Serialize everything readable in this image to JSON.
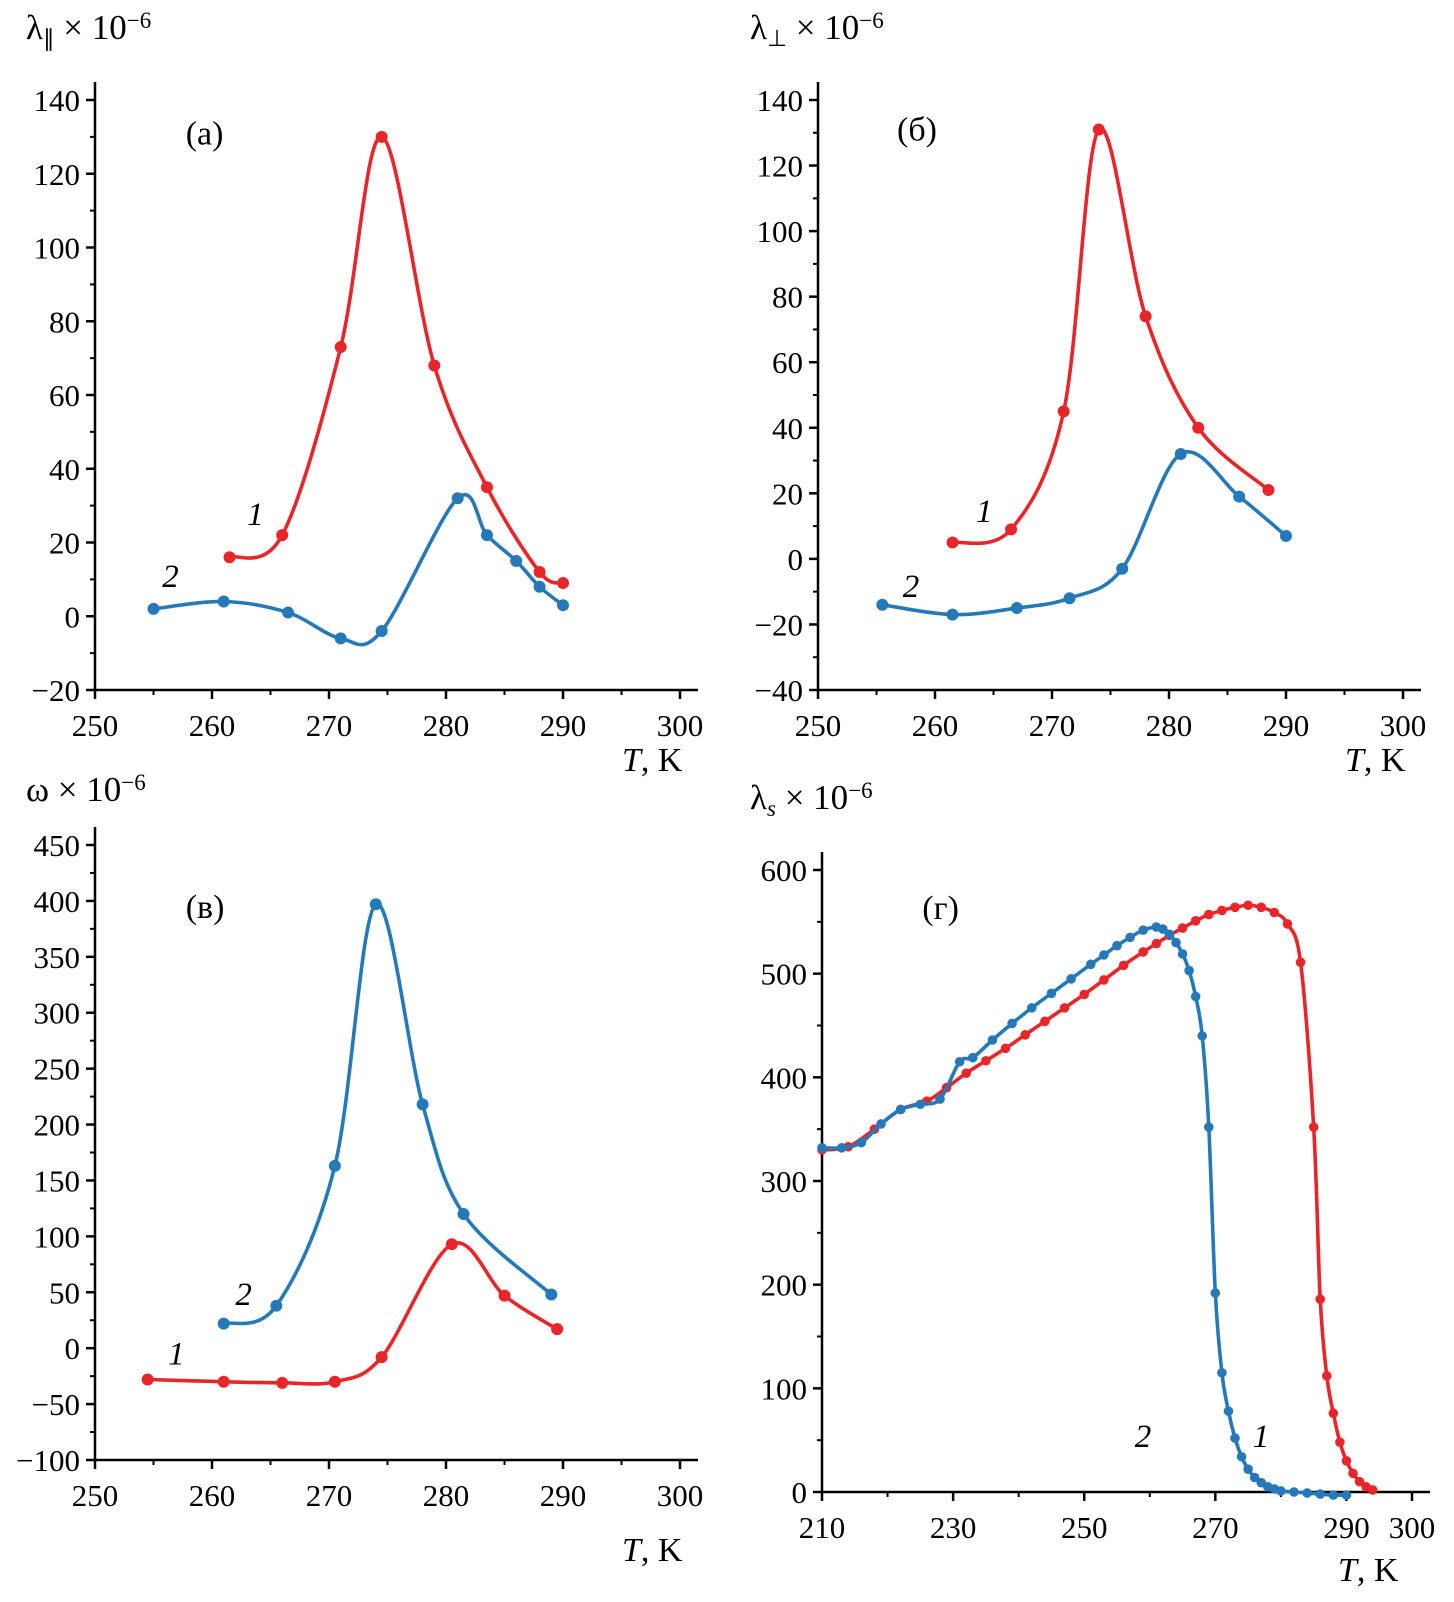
{
  "figure": {
    "panels": [
      {
        "key": "a",
        "ylabel": {
          "base": "λ",
          "sub": "∥",
          "mult": " × 10",
          "exp": "−6"
        },
        "xlabel": {
          "it": "T",
          "rest": ", K"
        }
      },
      {
        "key": "b",
        "ylabel": {
          "base": "λ",
          "sub": "⊥",
          "mult": " × 10",
          "exp": "−6"
        },
        "xlabel": {
          "it": "T",
          "rest": ", K"
        }
      },
      {
        "key": "v",
        "ylabel": {
          "base": "ω",
          "sub": "",
          "mult": " × 10",
          "exp": "−6"
        },
        "xlabel": {
          "it": "T",
          "rest": ", K"
        }
      },
      {
        "key": "g",
        "ylabel": {
          "base": "λ",
          "sub": "s",
          "mult": " × 10",
          "exp": "−6"
        },
        "xlabel": {
          "it": "T",
          "rest": ", K"
        }
      }
    ]
  },
  "chart_data": [
    {
      "key": "a",
      "type": "line",
      "panel_label": {
        "text": "(а)",
        "fx": 0.155,
        "fy": 0.035
      },
      "ylabel": "λ∥ × 10⁻⁶",
      "xlabel": "T, K",
      "xlim": [
        250,
        300
      ],
      "ylim": [
        -20,
        140
      ],
      "xticks": [
        250,
        260,
        270,
        280,
        290,
        300
      ],
      "x_minor": [
        255,
        265,
        275,
        285,
        295
      ],
      "yticks": [
        -20,
        0,
        20,
        40,
        60,
        80,
        100,
        120,
        140
      ],
      "y_minor": [
        -10,
        10,
        30,
        50,
        70,
        90,
        110,
        130
      ],
      "series": [
        {
          "name": "1",
          "color": "#e8262a",
          "label": {
            "text": "1",
            "fx": 0.26,
            "fy": 0.72
          },
          "points": [
            [
              261.5,
              16
            ],
            [
              266,
              22
            ],
            [
              271,
              73
            ],
            [
              274.5,
              130
            ],
            [
              279,
              68
            ],
            [
              283.5,
              35
            ],
            [
              288,
              12
            ],
            [
              290,
              9
            ]
          ]
        },
        {
          "name": "2",
          "color": "#2679b8",
          "label": {
            "text": "2",
            "fx": 0.115,
            "fy": 0.825
          },
          "points": [
            [
              255,
              2
            ],
            [
              261,
              4
            ],
            [
              266.5,
              1
            ],
            [
              271,
              -6
            ],
            [
              274.5,
              -4
            ],
            [
              281,
              32
            ],
            [
              283.5,
              22
            ],
            [
              286,
              15
            ],
            [
              288,
              8
            ],
            [
              290,
              3
            ]
          ]
        }
      ]
    },
    {
      "key": "b",
      "type": "line",
      "panel_label": {
        "text": "(б)",
        "fx": 0.135,
        "fy": 0.028
      },
      "ylabel": "λ⊥ × 10⁻⁶",
      "xlabel": "T, K",
      "xlim": [
        250,
        300
      ],
      "ylim": [
        -40,
        140
      ],
      "xticks": [
        250,
        260,
        270,
        280,
        290,
        300
      ],
      "x_minor": [
        255,
        265,
        275,
        285,
        295
      ],
      "yticks": [
        -40,
        -20,
        0,
        20,
        40,
        60,
        80,
        100,
        120,
        140
      ],
      "y_minor": [
        -30,
        -10,
        10,
        30,
        50,
        70,
        90,
        110,
        130
      ],
      "series": [
        {
          "name": "1",
          "color": "#e8262a",
          "label": {
            "text": "1",
            "fx": 0.27,
            "fy": 0.715
          },
          "points": [
            [
              261.5,
              5
            ],
            [
              266.5,
              9
            ],
            [
              271,
              45
            ],
            [
              274,
              131
            ],
            [
              278,
              74
            ],
            [
              282.5,
              40
            ],
            [
              288.5,
              21
            ]
          ]
        },
        {
          "name": "2",
          "color": "#2679b8",
          "label": {
            "text": "2",
            "fx": 0.145,
            "fy": 0.842
          },
          "points": [
            [
              255.5,
              -14
            ],
            [
              261.5,
              -17
            ],
            [
              267,
              -15
            ],
            [
              271.5,
              -12
            ],
            [
              276,
              -3
            ],
            [
              281,
              32
            ],
            [
              286,
              19
            ],
            [
              290,
              7
            ]
          ]
        }
      ]
    },
    {
      "key": "v",
      "type": "line",
      "panel_label": {
        "text": "(в)",
        "fx": 0.155,
        "fy": 0.08
      },
      "ylabel": "ω × 10⁻⁶",
      "xlabel": "T, K",
      "xlim": [
        250,
        300
      ],
      "ylim": [
        -100,
        450
      ],
      "xticks": [
        250,
        260,
        270,
        280,
        290,
        300
      ],
      "x_minor": [
        255,
        265,
        275,
        285,
        295
      ],
      "yticks": [
        -100,
        -50,
        0,
        50,
        100,
        150,
        200,
        250,
        300,
        350,
        400,
        450
      ],
      "y_minor": [
        -75,
        -25,
        25,
        75,
        125,
        175,
        225,
        275,
        325,
        375,
        425
      ],
      "series": [
        {
          "name": "1",
          "color": "#e8262a",
          "label": {
            "text": "1",
            "fx": 0.125,
            "fy": 0.845
          },
          "points": [
            [
              254.5,
              -28
            ],
            [
              261,
              -30
            ],
            [
              266,
              -31
            ],
            [
              270.5,
              -30
            ],
            [
              274.5,
              -8
            ],
            [
              280.5,
              93
            ],
            [
              285,
              47
            ],
            [
              289.5,
              17
            ]
          ]
        },
        {
          "name": "2",
          "color": "#2679b8",
          "label": {
            "text": "2",
            "fx": 0.24,
            "fy": 0.748
          },
          "points": [
            [
              261,
              22
            ],
            [
              265.5,
              38
            ],
            [
              270.5,
              163
            ],
            [
              274,
              397
            ],
            [
              278,
              218
            ],
            [
              281.5,
              120
            ],
            [
              289,
              48
            ]
          ]
        }
      ]
    },
    {
      "key": "g",
      "type": "line",
      "panel_label": {
        "text": "(г)",
        "fx": 0.17,
        "fy": 0.04
      },
      "ylabel": "λs × 10⁻⁶",
      "xlabel": "T, K",
      "xlim": [
        210,
        300
      ],
      "ylim": [
        0,
        600
      ],
      "xticks": [
        210,
        230,
        250,
        270,
        290,
        300
      ],
      "x_minor": [
        220,
        240,
        260,
        280
      ],
      "yticks": [
        0,
        100,
        200,
        300,
        400,
        500,
        600
      ],
      "y_minor": [
        50,
        150,
        250,
        350,
        450,
        550
      ],
      "series": [
        {
          "name": "1",
          "color": "#e8262a",
          "label": {
            "text": "1",
            "fx": 0.73,
            "fy": 0.928
          },
          "points": [
            [
              210,
              330
            ],
            [
              214,
              333
            ],
            [
              218,
              350
            ],
            [
              222,
              369
            ],
            [
              226,
              377
            ],
            [
              229,
              390
            ],
            [
              232,
              404
            ],
            [
              235,
              416
            ],
            [
              238,
              428
            ],
            [
              241,
              441
            ],
            [
              244,
              454
            ],
            [
              247,
              467
            ],
            [
              250,
              480
            ],
            [
              253,
              494
            ],
            [
              256,
              508
            ],
            [
              259,
              521
            ],
            [
              261,
              529
            ],
            [
              263,
              537
            ],
            [
              265,
              544
            ],
            [
              267,
              551
            ],
            [
              269,
              557
            ],
            [
              271,
              561
            ],
            [
              273,
              564
            ],
            [
              275,
              566
            ],
            [
              277,
              564
            ],
            [
              279,
              559
            ],
            [
              281,
              548
            ],
            [
              283,
              511
            ],
            [
              285,
              352
            ],
            [
              286,
              186
            ],
            [
              287,
              112
            ],
            [
              288,
              76
            ],
            [
              289,
              48
            ],
            [
              290,
              30
            ],
            [
              291,
              18
            ],
            [
              292,
              10
            ],
            [
              293,
              5
            ],
            [
              294,
              2
            ]
          ]
        },
        {
          "name": "2",
          "color": "#2679b8",
          "label": {
            "text": "2",
            "fx": 0.53,
            "fy": 0.928
          },
          "points": [
            [
              210,
              332
            ],
            [
              213,
              332
            ],
            [
              216,
              337
            ],
            [
              219,
              355
            ],
            [
              222,
              369
            ],
            [
              225,
              374
            ],
            [
              228,
              379
            ],
            [
              231,
              415
            ],
            [
              233,
              419
            ],
            [
              236,
              436
            ],
            [
              239,
              452
            ],
            [
              242,
              467
            ],
            [
              245,
              481
            ],
            [
              248,
              495
            ],
            [
              251,
              509
            ],
            [
              253,
              518
            ],
            [
              255,
              527
            ],
            [
              257,
              535
            ],
            [
              259,
              542
            ],
            [
              261,
              545
            ],
            [
              262,
              543
            ],
            [
              263,
              538
            ],
            [
              264,
              530
            ],
            [
              265,
              519
            ],
            [
              266,
              503
            ],
            [
              267,
              478
            ],
            [
              268,
              440
            ],
            [
              269,
              352
            ],
            [
              270,
              192
            ],
            [
              271,
              115
            ],
            [
              272,
              78
            ],
            [
              273,
              52
            ],
            [
              274,
              34
            ],
            [
              275,
              22
            ],
            [
              276,
              14
            ],
            [
              277,
              9
            ],
            [
              278,
              5
            ],
            [
              279,
              3
            ],
            [
              280,
              1
            ],
            [
              282,
              0
            ],
            [
              284,
              -1
            ],
            [
              286,
              -2
            ],
            [
              288,
              -3
            ],
            [
              290,
              -3
            ]
          ]
        }
      ]
    }
  ]
}
